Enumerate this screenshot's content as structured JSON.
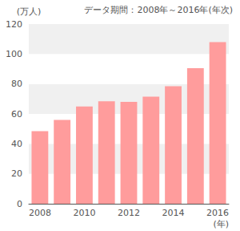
{
  "chart_data": {
    "type": "bar",
    "title": "データ期間：2008年～2016年(年次)",
    "y_label": "(万人)",
    "x_label": "(年)",
    "categories": [
      "2008",
      null,
      "2010",
      null,
      "2012",
      null,
      "2014",
      null,
      "2016"
    ],
    "values": [
      48.5,
      56,
      65,
      68.5,
      68,
      71.5,
      78.5,
      90.5,
      108
    ],
    "color": "#ff9c9c",
    "ylim": [
      0,
      120
    ],
    "yticks": [
      0,
      20,
      40,
      60,
      80,
      100,
      120
    ],
    "grid": true
  }
}
